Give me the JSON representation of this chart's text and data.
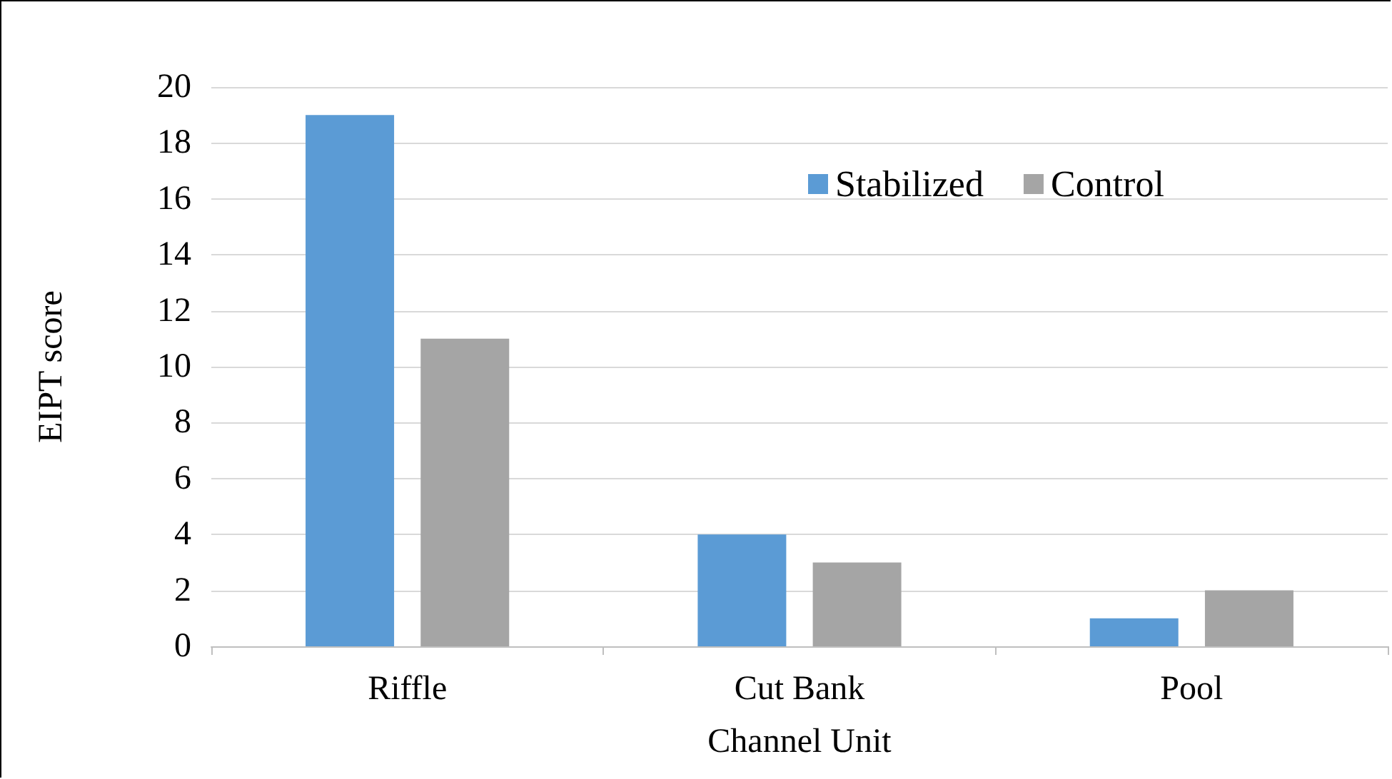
{
  "chart_data": {
    "type": "bar",
    "xlabel": "Channel Unit",
    "ylabel": "EIPT score",
    "categories": [
      "Riffle",
      "Cut Bank",
      "Pool"
    ],
    "series": [
      {
        "name": "Stabilized",
        "color": "#5b9bd5",
        "values": [
          19,
          4,
          1
        ]
      },
      {
        "name": "Control",
        "color": "#a5a5a5",
        "values": [
          11,
          3,
          2
        ]
      }
    ],
    "ylim": [
      0,
      20
    ],
    "yticks": [
      0,
      2,
      4,
      6,
      8,
      10,
      12,
      14,
      16,
      18,
      20
    ],
    "grid": "y",
    "legend": "top right"
  }
}
